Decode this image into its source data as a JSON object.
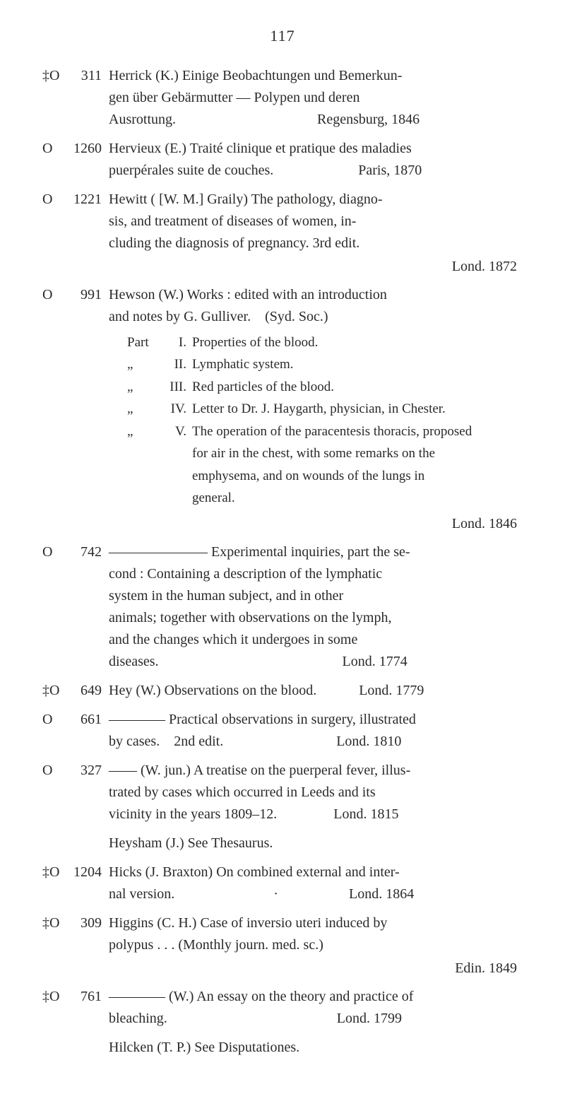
{
  "page_number": "117",
  "entries": [
    {
      "pre": "‡O",
      "num": "311",
      "head": "Herrick (K.) Einige Beobachtungen und Bemerkun-",
      "cont": [
        "gen über Gebärmutter — Polypen und deren",
        "Ausrottung.          Regensburg, 1846"
      ]
    },
    {
      "pre": "O",
      "num": "1260",
      "head": "Hervieux (E.) Traité clinique et pratique des maladies",
      "cont": [
        "puerpérales suite de couches.      Paris, 1870"
      ]
    },
    {
      "pre": "O",
      "num": "1221",
      "head": "Hewitt ( [W. M.] Graily) The pathology, diagno-",
      "cont": [
        "sis, and treatment of diseases of women, in-",
        "cluding the diagnosis of pregnancy. 3rd edit."
      ],
      "tail_right": "Lond. 1872"
    },
    {
      "pre": "O",
      "num": "991",
      "head": "Hewson (W.) Works : edited with an introduction",
      "cont": [
        "and notes by G. Gulliver. (Syd. Soc.)"
      ],
      "parts": [
        {
          "label": "Part",
          "roman": "I.",
          "text": "Properties of the blood."
        },
        {
          "label": "„",
          "roman": "II.",
          "text": "Lymphatic system."
        },
        {
          "label": "„",
          "roman": "III.",
          "text": "Red particles of the blood."
        },
        {
          "label": "„",
          "roman": "IV.",
          "text": "Letter to Dr. J. Haygarth, physician, in Chester."
        },
        {
          "label": "„",
          "roman": "V.",
          "text": "The operation of the paracentesis thoracis, proposed"
        }
      ],
      "parts_sub": [
        "for air in the chest, with some remarks on the",
        "emphysema, and on wounds of the lungs in",
        "general."
      ],
      "tail_right": "Lond. 1846"
    },
    {
      "pre": "O",
      "num": "742",
      "head": "——————— Experimental inquiries, part the se-",
      "cont": [
        "cond : Containing a description of the lymphatic",
        "system in the human subject, and in other",
        "animals; together with observations on the lymph,",
        "and the changes which it undergoes in some",
        "diseases.             Lond. 1774"
      ]
    },
    {
      "pre": "‡O",
      "num": "649",
      "head": "Hey (W.) Observations on the blood.   Lond. 1779"
    },
    {
      "pre": "O",
      "num": "661",
      "head": "———— Practical observations in surgery, illustrated",
      "cont": [
        "by cases. 2nd edit.        Lond. 1810"
      ]
    },
    {
      "pre": "O",
      "num": "327",
      "head": "—— (W. jun.) A treatise on the puerperal fever, illus-",
      "cont": [
        "trated by cases which occurred in Leeds and its",
        "vicinity in the years 1809–12.    Lond. 1815"
      ]
    },
    {
      "pre": "",
      "num": "",
      "head": "",
      "cont_plain": "Heysham (J.) See Thesaurus."
    },
    {
      "pre": "‡O",
      "num": "1204",
      "head": "Hicks (J. Braxton) On combined external and inter-",
      "cont": [
        "nal version.       ·     Lond. 1864"
      ]
    },
    {
      "pre": "‡O",
      "num": "309",
      "head": "Higgins (C. H.) Case of inversio uteri induced by",
      "cont": [
        "polypus . . . (Monthly journ. med. sc.)"
      ],
      "tail_right": "Edin. 1849"
    },
    {
      "pre": "‡O",
      "num": "761",
      "head": "———— (W.) An essay on the theory and practice of",
      "cont": [
        "bleaching.            Lond. 1799"
      ]
    },
    {
      "pre": "",
      "num": "",
      "head": "",
      "cont_plain": "Hilcken (T. P.) See Disputationes."
    }
  ]
}
